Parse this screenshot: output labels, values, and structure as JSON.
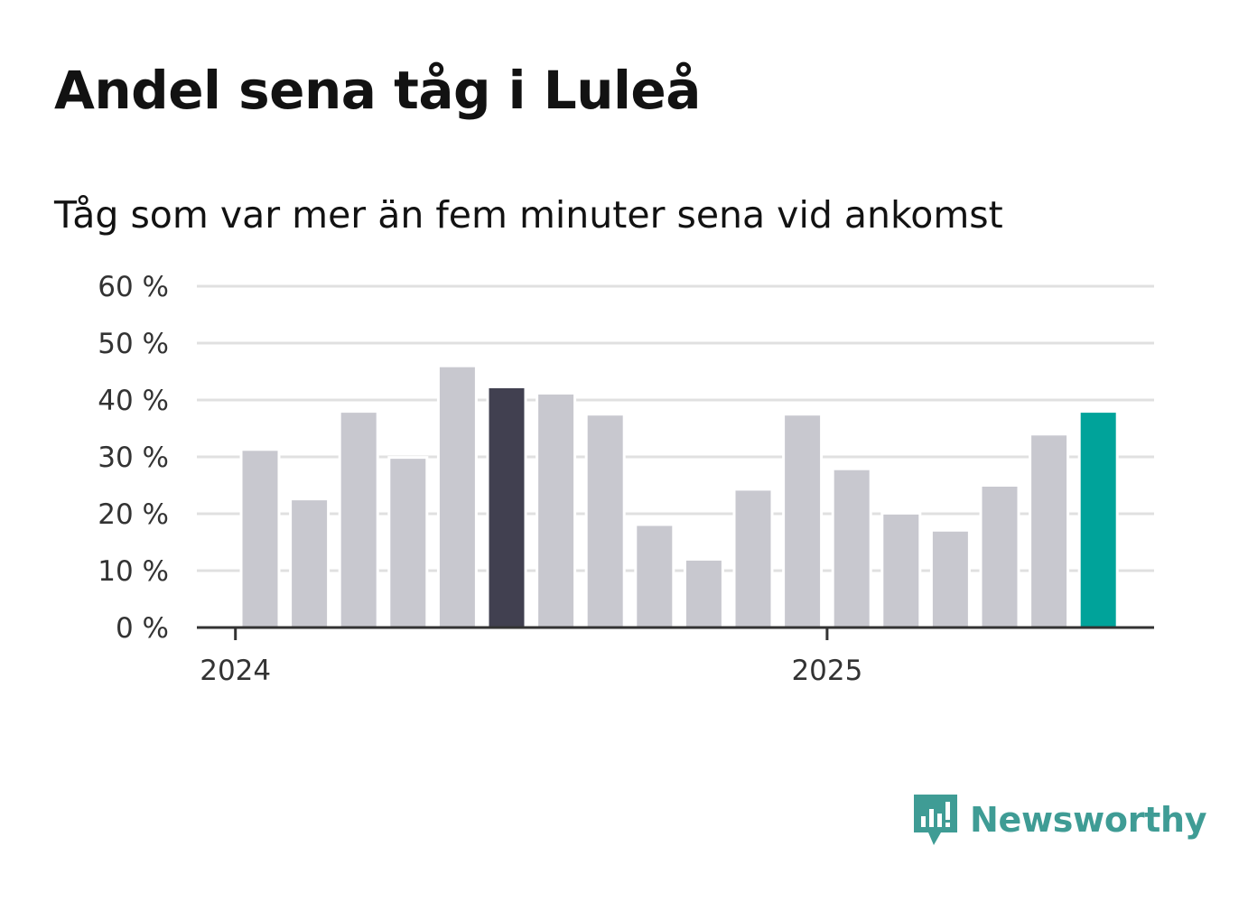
{
  "title": "Andel sena tåg i Luleå",
  "subtitle": "Tåg som var mer än fem minuter sena vid ankomst",
  "brand": {
    "name": "Newsworthy",
    "icon": "newsworthy-logo-icon",
    "color": "#3f9c95"
  },
  "chart_data": {
    "type": "bar",
    "title": "Andel sena tåg i Luleå",
    "subtitle": "Tåg som var mer än fem minuter sena vid ankomst",
    "xlabel": "",
    "ylabel": "",
    "ylim": [
      0,
      60
    ],
    "y_ticks": [
      "0 %",
      "10 %",
      "20 %",
      "30 %",
      "40 %",
      "50 %",
      "60 %"
    ],
    "y_tick_values": [
      0,
      10,
      20,
      30,
      40,
      50,
      60
    ],
    "x_tick_labels": [
      "2024",
      "2025"
    ],
    "x_tick_positions": [
      -0.5,
      11.5
    ],
    "grid": true,
    "values": [
      31.3,
      22.6,
      38.0,
      29.9,
      46.0,
      42.3,
      41.2,
      37.5,
      18.1,
      12.0,
      24.3,
      37.5,
      27.9,
      20.1,
      17.1,
      25.0,
      34.0,
      38.0
    ],
    "colors": {
      "default": "#c8c8cf",
      "highlight": "#414050",
      "latest": "#00a39a",
      "grid": "#e0e0e0",
      "axis": "#333333"
    },
    "highlight_index": 5,
    "latest_index": 17
  }
}
